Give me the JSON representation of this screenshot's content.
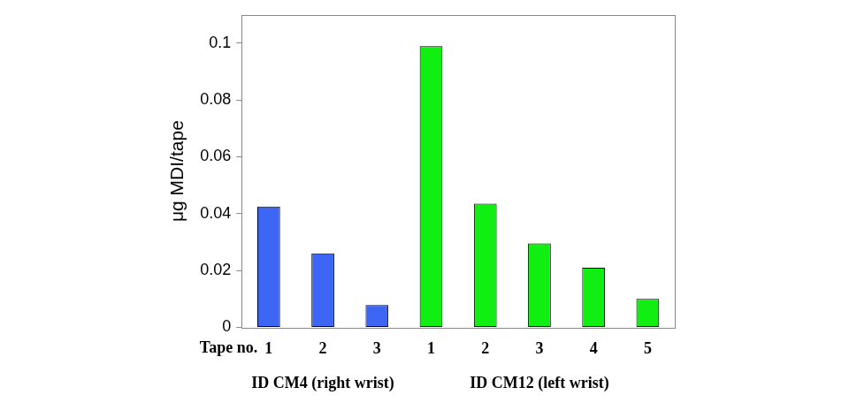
{
  "chart_data": {
    "type": "bar",
    "y_label": "μg MDI/tape",
    "x_label": "Tape no.",
    "categories": [
      "1",
      "2",
      "3",
      "1",
      "2",
      "3",
      "4",
      "5"
    ],
    "series": [
      {
        "name": "ID CM4 (right wrist)",
        "color": "#3d66f4",
        "values": [
          0.0425,
          0.026,
          0.0078,
          null,
          null,
          null,
          null,
          null
        ]
      },
      {
        "name": "ID CM12 (left wrist)",
        "color": "#11ee11",
        "values": [
          null,
          null,
          null,
          0.099,
          0.0435,
          0.0295,
          0.021,
          0.01
        ]
      }
    ],
    "ylim": [
      0,
      0.11
    ],
    "yticks": [
      0,
      0.02,
      0.04,
      0.06,
      0.08,
      0.1
    ],
    "grid": false
  }
}
